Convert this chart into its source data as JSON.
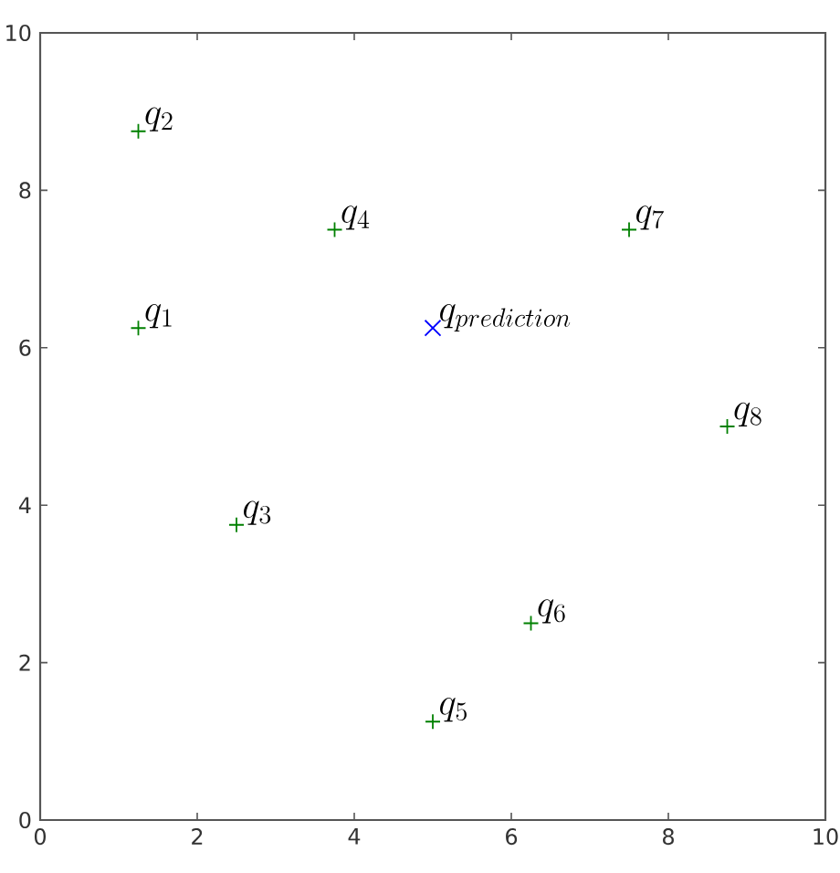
{
  "chart_data": {
    "type": "scatter",
    "xlim": [
      0,
      10
    ],
    "ylim": [
      0,
      10
    ],
    "xticks": [
      0,
      2,
      4,
      6,
      8,
      10
    ],
    "yticks": [
      0,
      2,
      4,
      6,
      8,
      10
    ],
    "series": [
      {
        "color": "#008000",
        "marker": "plus",
        "x": [
          1.25,
          1.25,
          2.5,
          3.75,
          5,
          6.25,
          7.5,
          8.75
        ],
        "values": [
          6.25,
          8.75,
          3.75,
          7.5,
          1.25,
          2.5,
          7.5,
          5
        ]
      },
      {
        "color": "#0000ff",
        "marker": "cross",
        "x": [
          5
        ],
        "values": [
          6.25
        ]
      }
    ],
    "annotations": [
      {
        "text": "q_{1}",
        "x": 1.25,
        "y": 6.25
      },
      {
        "text": "q_{2}",
        "x": 1.25,
        "y": 8.75
      },
      {
        "text": "q_{3}",
        "x": 2.5,
        "y": 3.75
      },
      {
        "text": "q_{4}",
        "x": 3.75,
        "y": 7.5
      },
      {
        "text": "q_{5}",
        "x": 5,
        "y": 1.25
      },
      {
        "text": "q_{6}",
        "x": 6.25,
        "y": 2.5
      },
      {
        "text": "q_{7}",
        "x": 7.5,
        "y": 7.5
      },
      {
        "text": "q_{8}",
        "x": 8.75,
        "y": 5
      },
      {
        "text": "q_{prediction}",
        "x": 5,
        "y": 6.25
      }
    ]
  }
}
